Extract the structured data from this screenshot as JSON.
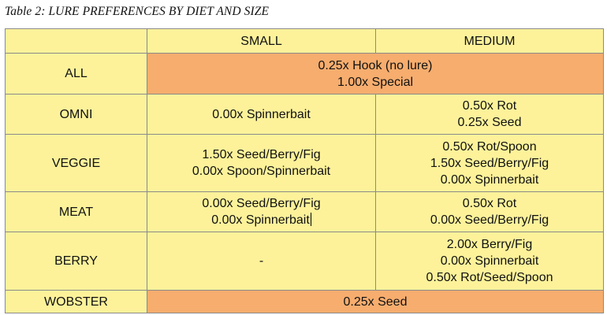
{
  "caption": "Table 2: LURE PREFERENCES BY DIET AND SIZE",
  "headers": {
    "corner": "",
    "small": "SMALL",
    "medium": "MEDIUM"
  },
  "rows": {
    "all": {
      "label": "ALL",
      "span": [
        "0.25x Hook (no lure)",
        "1.00x Special"
      ]
    },
    "omni": {
      "label": "OMNI",
      "small": [
        "0.00x Spinnerbait"
      ],
      "medium": [
        "0.50x Rot",
        "0.25x Seed"
      ]
    },
    "veggie": {
      "label": "VEGGIE",
      "small": [
        "1.50x Seed/Berry/Fig",
        "0.00x Spoon/Spinnerbait"
      ],
      "medium": [
        "0.50x Rot/Spoon",
        "1.50x Seed/Berry/Fig",
        "0.00x Spinnerbait"
      ]
    },
    "meat": {
      "label": "MEAT",
      "small": [
        "0.00x Seed/Berry/Fig",
        "0.00x Spinnerbait"
      ],
      "medium": [
        "0.50x Rot",
        "0.00x Seed/Berry/Fig"
      ]
    },
    "berry": {
      "label": "BERRY",
      "small": [
        "-"
      ],
      "medium": [
        "2.00x Berry/Fig",
        "0.00x Spinnerbait",
        "0.50x Rot/Seed/Spoon"
      ]
    },
    "wobster": {
      "label": "WOBSTER",
      "span": [
        "0.25x Seed"
      ]
    }
  },
  "colors": {
    "cell_yellow": "#fdf29a",
    "cell_orange": "#f6ad6e",
    "border": "#8a8a8a"
  }
}
